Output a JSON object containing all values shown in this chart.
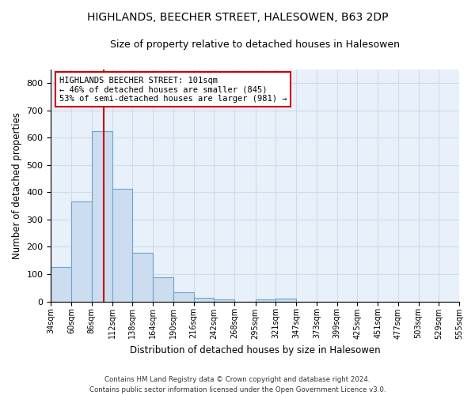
{
  "title": "HIGHLANDS, BEECHER STREET, HALESOWEN, B63 2DP",
  "subtitle": "Size of property relative to detached houses in Halesowen",
  "xlabel": "Distribution of detached houses by size in Halesowen",
  "ylabel": "Number of detached properties",
  "bar_color": "#ccddf0",
  "bar_edge_color": "#6ba3d0",
  "bins": [
    34,
    60,
    86,
    112,
    138,
    164,
    190,
    216,
    242,
    268,
    295,
    321,
    347,
    373,
    399,
    425,
    451,
    477,
    503,
    529,
    555
  ],
  "bar_heights": [
    127,
    365,
    625,
    413,
    178,
    88,
    32,
    12,
    8,
    0,
    8,
    10,
    0,
    0,
    0,
    0,
    0,
    0,
    0,
    0
  ],
  "property_size": 101,
  "red_line_color": "#cc0000",
  "annotation_text": "HIGHLANDS BEECHER STREET: 101sqm\n← 46% of detached houses are smaller (845)\n53% of semi-detached houses are larger (981) →",
  "annotation_box_color": "white",
  "annotation_box_edge_color": "#cc0000",
  "ylim": [
    0,
    850
  ],
  "yticks": [
    0,
    100,
    200,
    300,
    400,
    500,
    600,
    700,
    800
  ],
  "background_color": "#e8f0fa",
  "grid_color": "#d0dce8",
  "footer": "Contains HM Land Registry data © Crown copyright and database right 2024.\nContains public sector information licensed under the Open Government Licence v3.0.",
  "title_fontsize": 10,
  "subtitle_fontsize": 9
}
